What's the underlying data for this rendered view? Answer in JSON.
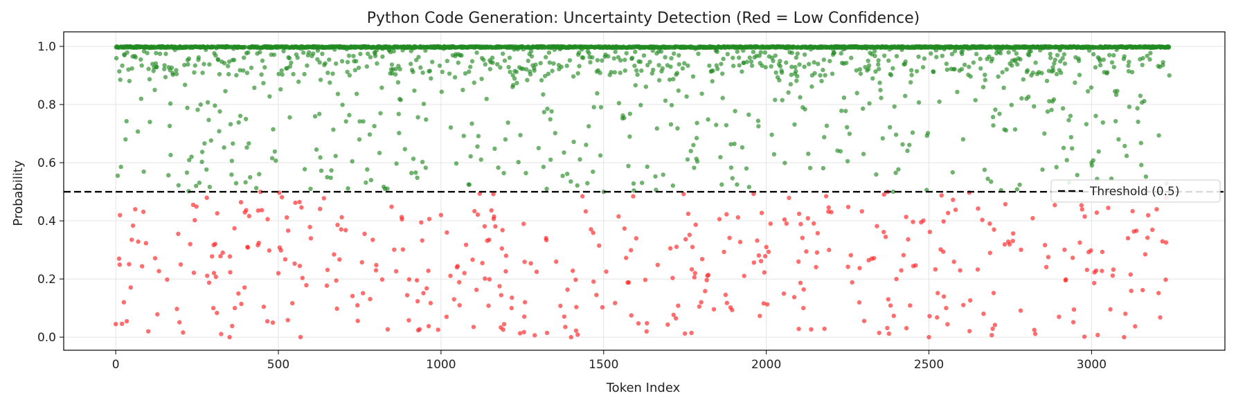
{
  "chart_data": {
    "type": "scatter",
    "title": "Python Code Generation: Uncertainty Detection (Red = Low Confidence)",
    "xlabel": "Token Index",
    "ylabel": "Probability",
    "xlim": [
      -160,
      3410
    ],
    "ylim": [
      -0.045,
      1.05
    ],
    "xticks": [
      0,
      500,
      1000,
      1500,
      2000,
      2500,
      3000
    ],
    "yticks": [
      0.0,
      0.2,
      0.4,
      0.6,
      0.8,
      1.0
    ],
    "xtick_labels": [
      "0",
      "500",
      "1000",
      "1500",
      "2000",
      "2500",
      "3000"
    ],
    "ytick_labels": [
      "0.0",
      "0.2",
      "0.4",
      "0.6",
      "0.8",
      "1.0"
    ],
    "grid": true,
    "threshold": {
      "value": 0.5,
      "label": "Threshold (0.5)",
      "style": "dashed",
      "color": "#000000"
    },
    "legend": {
      "placement": "center-right",
      "entries": [
        "Threshold (0.5)"
      ]
    },
    "point_count": 3240,
    "colors": {
      "high_confidence": "#228B22",
      "low_confidence": "#FF2020",
      "threshold": "#000000"
    },
    "series": [
      {
        "color": "#228B22",
        "description_rule": "probability >= 0.5",
        "sample_points": [
          [
            0,
            0.998
          ],
          [
            10,
            0.97
          ],
          [
            25,
            0.58
          ],
          [
            30,
            0.68
          ],
          [
            60,
            0.9
          ],
          [
            120,
            0.85
          ],
          [
            200,
            0.52
          ],
          [
            300,
            0.62
          ],
          [
            400,
            0.75
          ],
          [
            500,
            0.62
          ],
          [
            650,
            0.55
          ],
          [
            800,
            0.65
          ],
          [
            1000,
            0.71
          ],
          [
            1300,
            0.65
          ],
          [
            1500,
            0.5
          ],
          [
            1600,
            0.78
          ],
          [
            1800,
            0.99
          ],
          [
            2000,
            0.63
          ],
          [
            2200,
            0.54
          ],
          [
            2400,
            0.86
          ],
          [
            2600,
            0.98
          ],
          [
            2800,
            0.82
          ],
          [
            3000,
            0.6
          ],
          [
            3150,
            0.83
          ],
          [
            3240,
            0.99
          ]
        ]
      },
      {
        "color": "#FF2020",
        "description_rule": "probability < 0.5",
        "sample_points": [
          [
            0,
            0.045
          ],
          [
            10,
            0.27
          ],
          [
            25,
            0.12
          ],
          [
            60,
            0.44
          ],
          [
            100,
            0.02
          ],
          [
            200,
            0.25
          ],
          [
            300,
            0.1
          ],
          [
            350,
            0.0
          ],
          [
            500,
            0.22
          ],
          [
            600,
            0.34
          ],
          [
            800,
            0.23
          ],
          [
            1000,
            0.42
          ],
          [
            1200,
            0.28
          ],
          [
            1400,
            0.0
          ],
          [
            1600,
            0.34
          ],
          [
            1800,
            0.12
          ],
          [
            2000,
            0.31
          ],
          [
            2200,
            0.43
          ],
          [
            2400,
            0.2
          ],
          [
            2500,
            0.0
          ],
          [
            2700,
            0.37
          ],
          [
            2900,
            0.07
          ],
          [
            3100,
            0.0
          ],
          [
            3200,
            0.44
          ],
          [
            3230,
            0.48
          ]
        ]
      }
    ]
  }
}
